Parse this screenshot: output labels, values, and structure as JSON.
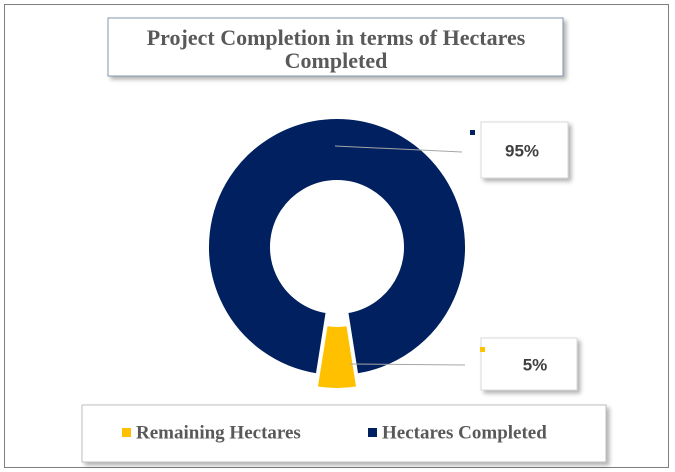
{
  "chart_data": {
    "type": "pie",
    "title": [
      "Project Completion in terms of Hectares",
      "Completed"
    ],
    "categories": [
      "Remaining Hectares",
      "Hectares Completed"
    ],
    "values": [
      5,
      95
    ],
    "value_labels": [
      "5%",
      "95%"
    ],
    "colors": [
      "#FFC000",
      "#002060"
    ],
    "donut": true,
    "legend": "bottom"
  }
}
